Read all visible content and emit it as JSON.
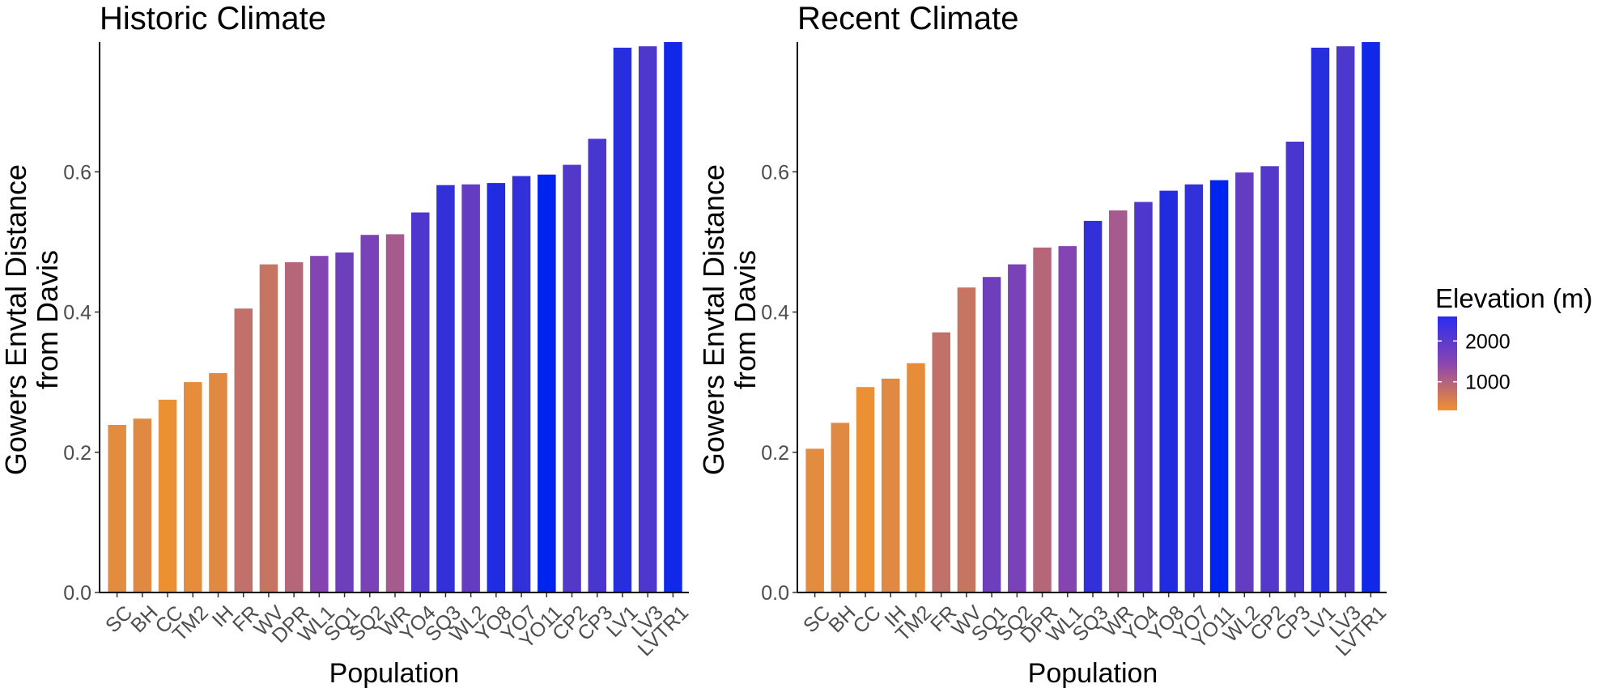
{
  "colors": {
    "low_elev": "#ec9233",
    "mid_elev": "#8a46b0",
    "high_elev": "#0024f0",
    "axis": "#000000",
    "tick_text": "#4d4d4d"
  },
  "legend": {
    "title": "Elevation (m)",
    "ticks": [
      {
        "value": 2000,
        "label": "2000"
      },
      {
        "value": 1000,
        "label": "1000"
      }
    ],
    "scale_min": 300,
    "scale_max": 2600,
    "position": "right"
  },
  "chart_data": [
    {
      "type": "bar",
      "title": "Historic Climate",
      "xlabel": "Population",
      "ylabel": [
        "Gowers Envtal Distance",
        "from Davis"
      ],
      "ylim": [
        0,
        0.785
      ],
      "yticks": [
        0.0,
        0.2,
        0.4,
        0.6
      ],
      "ytick_labels": [
        "0.0",
        "0.2",
        "0.4",
        "0.6"
      ],
      "grid": false,
      "categories": [
        "SC",
        "BH",
        "CC",
        "TM2",
        "IH",
        "FR",
        "WV",
        "DPR",
        "WL1",
        "SQ1",
        "SQ2",
        "WR",
        "YO4",
        "SQ3",
        "WL2",
        "YO8",
        "YO7",
        "YO11",
        "CP2",
        "CP3",
        "LV1",
        "LV3",
        "LVTR1"
      ],
      "values": [
        0.239,
        0.248,
        0.275,
        0.3,
        0.313,
        0.405,
        0.468,
        0.471,
        0.48,
        0.485,
        0.51,
        0.511,
        0.542,
        0.581,
        0.582,
        0.584,
        0.594,
        0.596,
        0.61,
        0.647,
        0.777,
        0.779,
        0.785
      ],
      "elevation": [
        420,
        450,
        310,
        380,
        450,
        850,
        780,
        1000,
        1600,
        1800,
        1700,
        1200,
        2100,
        2350,
        1900,
        2500,
        2350,
        2800,
        2050,
        2150,
        2450,
        2100,
        2650
      ]
    },
    {
      "type": "bar",
      "title": "Recent Climate",
      "xlabel": "Population",
      "ylabel": [
        "Gowers Envtal Distance",
        "from Davis"
      ],
      "ylim": [
        0,
        0.785
      ],
      "yticks": [
        0.0,
        0.2,
        0.4,
        0.6
      ],
      "ytick_labels": [
        "0.0",
        "0.2",
        "0.4",
        "0.6"
      ],
      "grid": false,
      "categories": [
        "SC",
        "BH",
        "CC",
        "IH",
        "TM2",
        "FR",
        "WV",
        "SQ1",
        "SQ2",
        "DPR",
        "WL1",
        "SQ3",
        "WR",
        "YO4",
        "YO8",
        "YO7",
        "YO11",
        "WL2",
        "CP2",
        "CP3",
        "LV1",
        "LV3",
        "LVTR1"
      ],
      "values": [
        0.205,
        0.242,
        0.293,
        0.305,
        0.327,
        0.371,
        0.435,
        0.45,
        0.468,
        0.492,
        0.494,
        0.53,
        0.545,
        0.557,
        0.573,
        0.582,
        0.588,
        0.599,
        0.608,
        0.643,
        0.777,
        0.779,
        0.785
      ],
      "elevation": [
        420,
        450,
        310,
        450,
        380,
        850,
        780,
        1800,
        1700,
        1000,
        1600,
        2350,
        1200,
        2100,
        2500,
        2350,
        2800,
        1900,
        2050,
        2150,
        2450,
        2100,
        2650
      ]
    }
  ]
}
